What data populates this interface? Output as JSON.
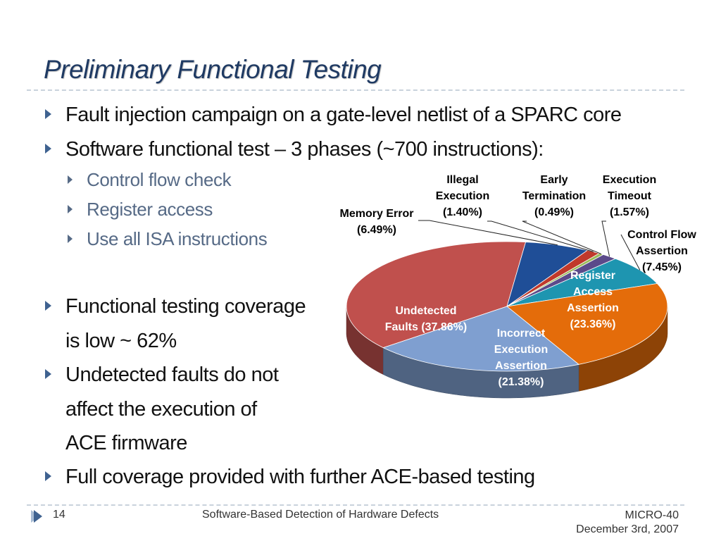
{
  "slide": {
    "title": "Preliminary Functional Testing"
  },
  "bullets": {
    "b1": "Fault injection campaign on a gate-level netlist of a SPARC core",
    "b2": "Software functional test – 3 phases (~700 instructions):",
    "sub1": "Control flow check",
    "sub2": "Register access",
    "sub3": "Use all ISA instructions",
    "b3_line1": "Functional testing coverage",
    "b3_line2": " is low ~ 62%",
    "b4_line1": "Undetected faults do not",
    "b4_line2": "affect the execution of",
    "b4_line3": "ACE firmware",
    "b5": "Full coverage provided with further ACE-based testing"
  },
  "footer": {
    "page_number": "14",
    "center_text": "Software-Based Detection of Hardware Defects",
    "venue": "MICRO-40",
    "date": "December 3rd, 2007"
  },
  "chart_data": {
    "type": "pie",
    "title": "",
    "slices": [
      {
        "name": "Undetected Faults",
        "lines": [
          "Undetected",
          "Faults (37.86%)"
        ],
        "value": 37.86,
        "color": "#c0504d",
        "label_color": "#ffffff"
      },
      {
        "name": "Memory Error",
        "lines": [
          "Memory Error",
          "(6.49%)"
        ],
        "value": 6.49,
        "color": "#1f4e97",
        "label_color": "#000000"
      },
      {
        "name": "Illegal Execution",
        "lines": [
          "Illegal",
          "Execution",
          "(1.40%)"
        ],
        "value": 1.4,
        "color": "#c0392b",
        "label_color": "#000000"
      },
      {
        "name": "Early Termination",
        "lines": [
          "Early",
          "Termination",
          "(0.49%)"
        ],
        "value": 0.49,
        "color": "#9bbb59",
        "label_color": "#000000"
      },
      {
        "name": "Execution Timeout",
        "lines": [
          "Execution",
          "Timeout",
          "(1.57%)"
        ],
        "value": 1.57,
        "color": "#5b4a8a",
        "label_color": "#000000"
      },
      {
        "name": "Control Flow Assertion",
        "lines": [
          "Control Flow",
          "Assertion",
          "(7.45%)"
        ],
        "value": 7.45,
        "color": "#1e95b0",
        "label_color": "#000000"
      },
      {
        "name": "Register Access Assertion",
        "lines": [
          "Register",
          "Access",
          "Assertion",
          "(23.36%)"
        ],
        "value": 23.36,
        "color": "#e46c0a",
        "label_color": "#ffffff"
      },
      {
        "name": "Incorrect Execution Assertion",
        "lines": [
          "Incorrect",
          "Execution",
          "Assertion",
          "(21.38%)"
        ],
        "value": 21.38,
        "color": "#7f9fd0",
        "label_color": "#ffffff"
      }
    ]
  }
}
